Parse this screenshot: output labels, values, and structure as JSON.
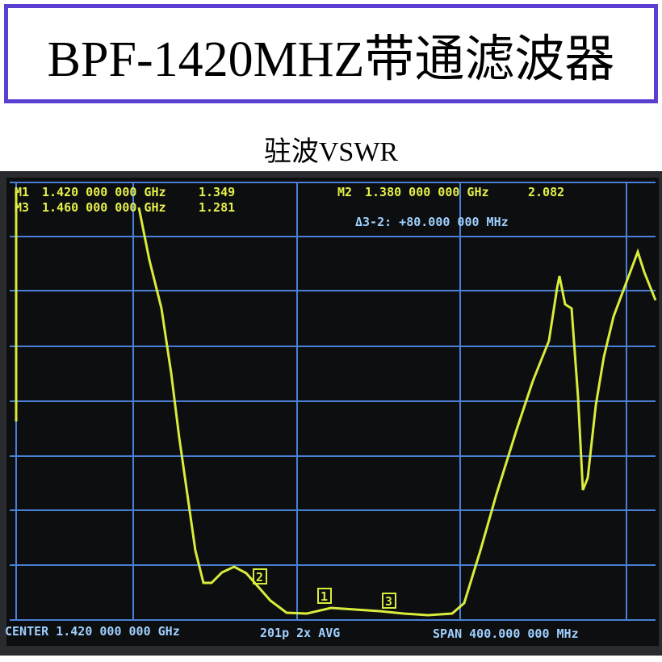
{
  "header": {
    "title": "BPF-1420MHZ带通滤波器",
    "subtitle": "驻波VSWR"
  },
  "screen": {
    "markers": [
      {
        "label": "M1",
        "frequency": "1.420 000 000 GHz",
        "value": "1.349"
      },
      {
        "label": "M3",
        "frequency": "1.460 000 000 GHz",
        "value": "1.281"
      },
      {
        "label": "M2",
        "frequency": "1.380 000 000 GHz",
        "value": "2.082"
      }
    ],
    "delta": "Δ3-2: +80.000 000 MHz",
    "footer": {
      "center": "CENTER 1.420 000 000 GHz",
      "points": "201p 2x AVG",
      "span": "SPAN 400.000 000 MHz"
    },
    "marker_tags": [
      "1",
      "2",
      "3"
    ]
  }
}
